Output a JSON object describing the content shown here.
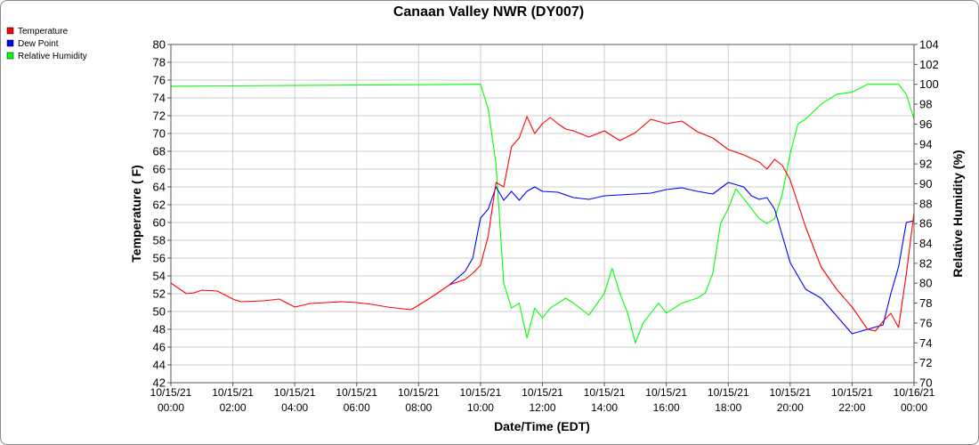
{
  "chart_data": {
    "type": "line",
    "title": "Canaan Valley NWR (DY007)",
    "xlabel": "Date/Time (EDT)",
    "ylabel_left": "Temperature ( F)",
    "ylabel_right": "Relative Humidity (%)",
    "ylim_left": [
      42,
      80
    ],
    "ylim_right": [
      70,
      104
    ],
    "yticks_left": [
      42,
      44,
      46,
      48,
      50,
      52,
      54,
      56,
      58,
      60,
      62,
      64,
      66,
      68,
      70,
      72,
      74,
      76,
      78,
      80
    ],
    "yticks_right": [
      70,
      72,
      74,
      76,
      78,
      80,
      82,
      84,
      86,
      88,
      90,
      92,
      94,
      96,
      98,
      100,
      102,
      104
    ],
    "x_range": [
      "10/15/21 00:00",
      "10/16/21 00:00"
    ],
    "x_ticks": [
      {
        "date": "10/15/21",
        "time": "00:00"
      },
      {
        "date": "10/15/21",
        "time": "02:00"
      },
      {
        "date": "10/15/21",
        "time": "04:00"
      },
      {
        "date": "10/15/21",
        "time": "06:00"
      },
      {
        "date": "10/15/21",
        "time": "08:00"
      },
      {
        "date": "10/15/21",
        "time": "10:00"
      },
      {
        "date": "10/15/21",
        "time": "12:00"
      },
      {
        "date": "10/15/21",
        "time": "14:00"
      },
      {
        "date": "10/15/21",
        "time": "16:00"
      },
      {
        "date": "10/15/21",
        "time": "18:00"
      },
      {
        "date": "10/15/21",
        "time": "20:00"
      },
      {
        "date": "10/15/21",
        "time": "22:00"
      },
      {
        "date": "10/16/21",
        "time": "00:00"
      }
    ],
    "grid": true,
    "legend_position": "top-left",
    "series": [
      {
        "name": "Temperature",
        "color": "#ff0000",
        "axis": "left",
        "x": [
          "10/15/21 00:00",
          "10/15/21 00:30",
          "10/15/21 00:45",
          "10/15/21 01:00",
          "10/15/21 01:30",
          "10/15/21 02:00",
          "10/15/21 02:15",
          "10/15/21 03:00",
          "10/15/21 03:30",
          "10/15/21 04:00",
          "10/15/21 04:30",
          "10/15/21 05:00",
          "10/15/21 05:30",
          "10/15/21 06:00",
          "10/15/21 06:30",
          "10/15/21 07:00",
          "10/15/21 07:15",
          "10/15/21 07:45",
          "10/15/21 08:00",
          "10/15/21 08:30",
          "10/15/21 09:00",
          "10/15/21 09:30",
          "10/15/21 09:45",
          "10/15/21 10:00",
          "10/15/21 10:15",
          "10/15/21 10:30",
          "10/15/21 10:45",
          "10/15/21 11:00",
          "10/15/21 11:15",
          "10/15/21 11:30",
          "10/15/21 11:45",
          "10/15/21 12:00",
          "10/15/21 12:15",
          "10/15/21 12:30",
          "10/15/21 12:45",
          "10/15/21 13:00",
          "10/15/21 13:30",
          "10/15/21 14:00",
          "10/15/21 14:30",
          "10/15/21 15:00",
          "10/15/21 15:30",
          "10/15/21 16:00",
          "10/15/21 16:30",
          "10/15/21 17:00",
          "10/15/21 17:30",
          "10/15/21 18:00",
          "10/15/21 18:30",
          "10/15/21 18:45",
          "10/15/21 19:00",
          "10/15/21 19:15",
          "10/15/21 19:30",
          "10/15/21 19:45",
          "10/15/21 20:00",
          "10/15/21 20:30",
          "10/15/21 21:00",
          "10/15/21 21:30",
          "10/15/21 22:00",
          "10/15/21 22:30",
          "10/15/21 22:45",
          "10/15/21 23:00",
          "10/15/21 23:15",
          "10/15/21 23:30",
          "10/15/21 23:45",
          "10/16/21 00:00"
        ],
        "values": [
          53.2,
          52.0,
          52.1,
          52.4,
          52.3,
          51.4,
          51.1,
          51.2,
          51.4,
          50.5,
          50.9,
          51.0,
          51.1,
          51.0,
          50.8,
          50.5,
          50.4,
          50.2,
          50.7,
          51.8,
          53.0,
          53.6,
          54.3,
          55.2,
          58.5,
          64.5,
          64.0,
          68.5,
          69.5,
          71.9,
          70.0,
          71.1,
          71.8,
          71.1,
          70.5,
          70.3,
          69.6,
          70.3,
          69.2,
          70.1,
          71.6,
          71.1,
          71.4,
          70.2,
          69.5,
          68.2,
          67.6,
          67.2,
          66.8,
          66.0,
          67.1,
          66.4,
          64.8,
          59.5,
          55.0,
          52.5,
          50.5,
          48.0,
          47.8,
          48.9,
          49.8,
          48.2,
          54.2,
          61.1
        ]
      },
      {
        "name": "Dew Point",
        "color": "#0000ff",
        "axis": "left",
        "x": [
          "10/15/21 09:00",
          "10/15/21 09:30",
          "10/15/21 09:45",
          "10/15/21 10:00",
          "10/15/21 10:15",
          "10/15/21 10:30",
          "10/15/21 10:45",
          "10/15/21 11:00",
          "10/15/21 11:15",
          "10/15/21 11:30",
          "10/15/21 11:45",
          "10/15/21 12:00",
          "10/15/21 12:30",
          "10/15/21 13:00",
          "10/15/21 13:30",
          "10/15/21 14:00",
          "10/15/21 14:30",
          "10/15/21 15:00",
          "10/15/21 15:30",
          "10/15/21 16:00",
          "10/15/21 16:30",
          "10/15/21 17:00",
          "10/15/21 17:30",
          "10/15/21 18:00",
          "10/15/21 18:30",
          "10/15/21 18:45",
          "10/15/21 19:00",
          "10/15/21 19:15",
          "10/15/21 19:30",
          "10/15/21 19:45",
          "10/15/21 20:00",
          "10/15/21 20:30",
          "10/15/21 21:00",
          "10/15/21 21:30",
          "10/15/21 22:00",
          "10/15/21 22:30",
          "10/15/21 23:00",
          "10/15/21 23:15",
          "10/15/21 23:30",
          "10/15/21 23:45",
          "10/16/21 00:00"
        ],
        "values": [
          53.0,
          54.5,
          56.0,
          60.5,
          61.5,
          64.0,
          62.5,
          63.5,
          62.5,
          63.5,
          64.0,
          63.5,
          63.4,
          62.8,
          62.6,
          63.0,
          63.1,
          63.2,
          63.3,
          63.7,
          63.9,
          63.5,
          63.2,
          64.5,
          64.0,
          63.0,
          62.6,
          62.8,
          61.5,
          58.5,
          55.5,
          52.5,
          51.5,
          49.5,
          47.5,
          48.0,
          48.5,
          52.0,
          55.0,
          60.0,
          60.2
        ]
      },
      {
        "name": "Relative Humidity",
        "color": "#00ff00",
        "axis": "right",
        "x": [
          "10/15/21 00:00",
          "10/15/21 10:00",
          "10/15/21 10:15",
          "10/15/21 10:30",
          "10/15/21 10:45",
          "10/15/21 11:00",
          "10/15/21 11:15",
          "10/15/21 11:30",
          "10/15/21 11:45",
          "10/15/21 12:00",
          "10/15/21 12:15",
          "10/15/21 12:30",
          "10/15/21 12:45",
          "10/15/21 13:00",
          "10/15/21 13:30",
          "10/15/21 14:00",
          "10/15/21 14:15",
          "10/15/21 14:30",
          "10/15/21 14:45",
          "10/15/21 15:00",
          "10/15/21 15:15",
          "10/15/21 15:30",
          "10/15/21 15:45",
          "10/15/21 16:00",
          "10/15/21 16:30",
          "10/15/21 17:00",
          "10/15/21 17:15",
          "10/15/21 17:30",
          "10/15/21 17:45",
          "10/15/21 18:00",
          "10/15/21 18:15",
          "10/15/21 18:30",
          "10/15/21 18:45",
          "10/15/21 19:00",
          "10/15/21 19:15",
          "10/15/21 19:30",
          "10/15/21 19:45",
          "10/15/21 20:00",
          "10/15/21 20:15",
          "10/15/21 20:30",
          "10/15/21 21:00",
          "10/15/21 21:30",
          "10/15/21 22:00",
          "10/15/21 22:30",
          "10/15/21 23:00",
          "10/15/21 23:30",
          "10/15/21 23:45",
          "10/16/21 00:00"
        ],
        "values": [
          99.8,
          100.0,
          97.5,
          92.0,
          80.0,
          77.5,
          78.0,
          74.5,
          77.5,
          76.5,
          77.5,
          78.0,
          78.5,
          78.0,
          76.8,
          79.0,
          81.5,
          79.0,
          77.0,
          74.0,
          76.0,
          77.0,
          78.0,
          77.0,
          78.0,
          78.5,
          79.0,
          81.0,
          86.0,
          87.5,
          89.5,
          88.5,
          87.5,
          86.5,
          86.0,
          86.5,
          89.0,
          93.0,
          96.0,
          96.5,
          98.0,
          99.0,
          99.2,
          100.0,
          100.0,
          100.0,
          99.0,
          96.5
        ]
      }
    ]
  }
}
